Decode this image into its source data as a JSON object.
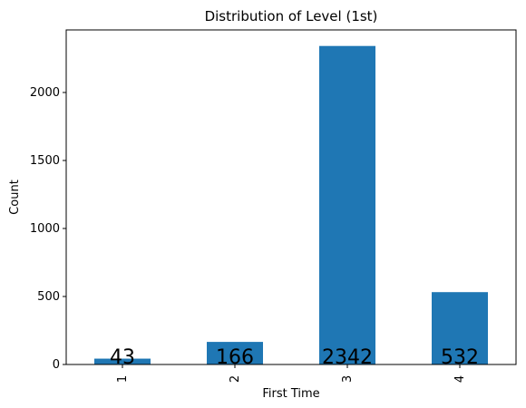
{
  "chart_data": {
    "type": "bar",
    "title": "Distribution of Level (1st)",
    "xlabel": "First Time",
    "ylabel": "Count",
    "categories": [
      "1",
      "2",
      "3",
      "4"
    ],
    "values": [
      43,
      166,
      2342,
      532
    ],
    "data_labels": [
      "43",
      "166",
      "2342",
      "532"
    ],
    "yticks": [
      0,
      500,
      1000,
      1500,
      2000
    ],
    "ylim": [
      0,
      2460
    ],
    "bar_color": "#1f77b4",
    "grid": false,
    "legend": "none"
  }
}
